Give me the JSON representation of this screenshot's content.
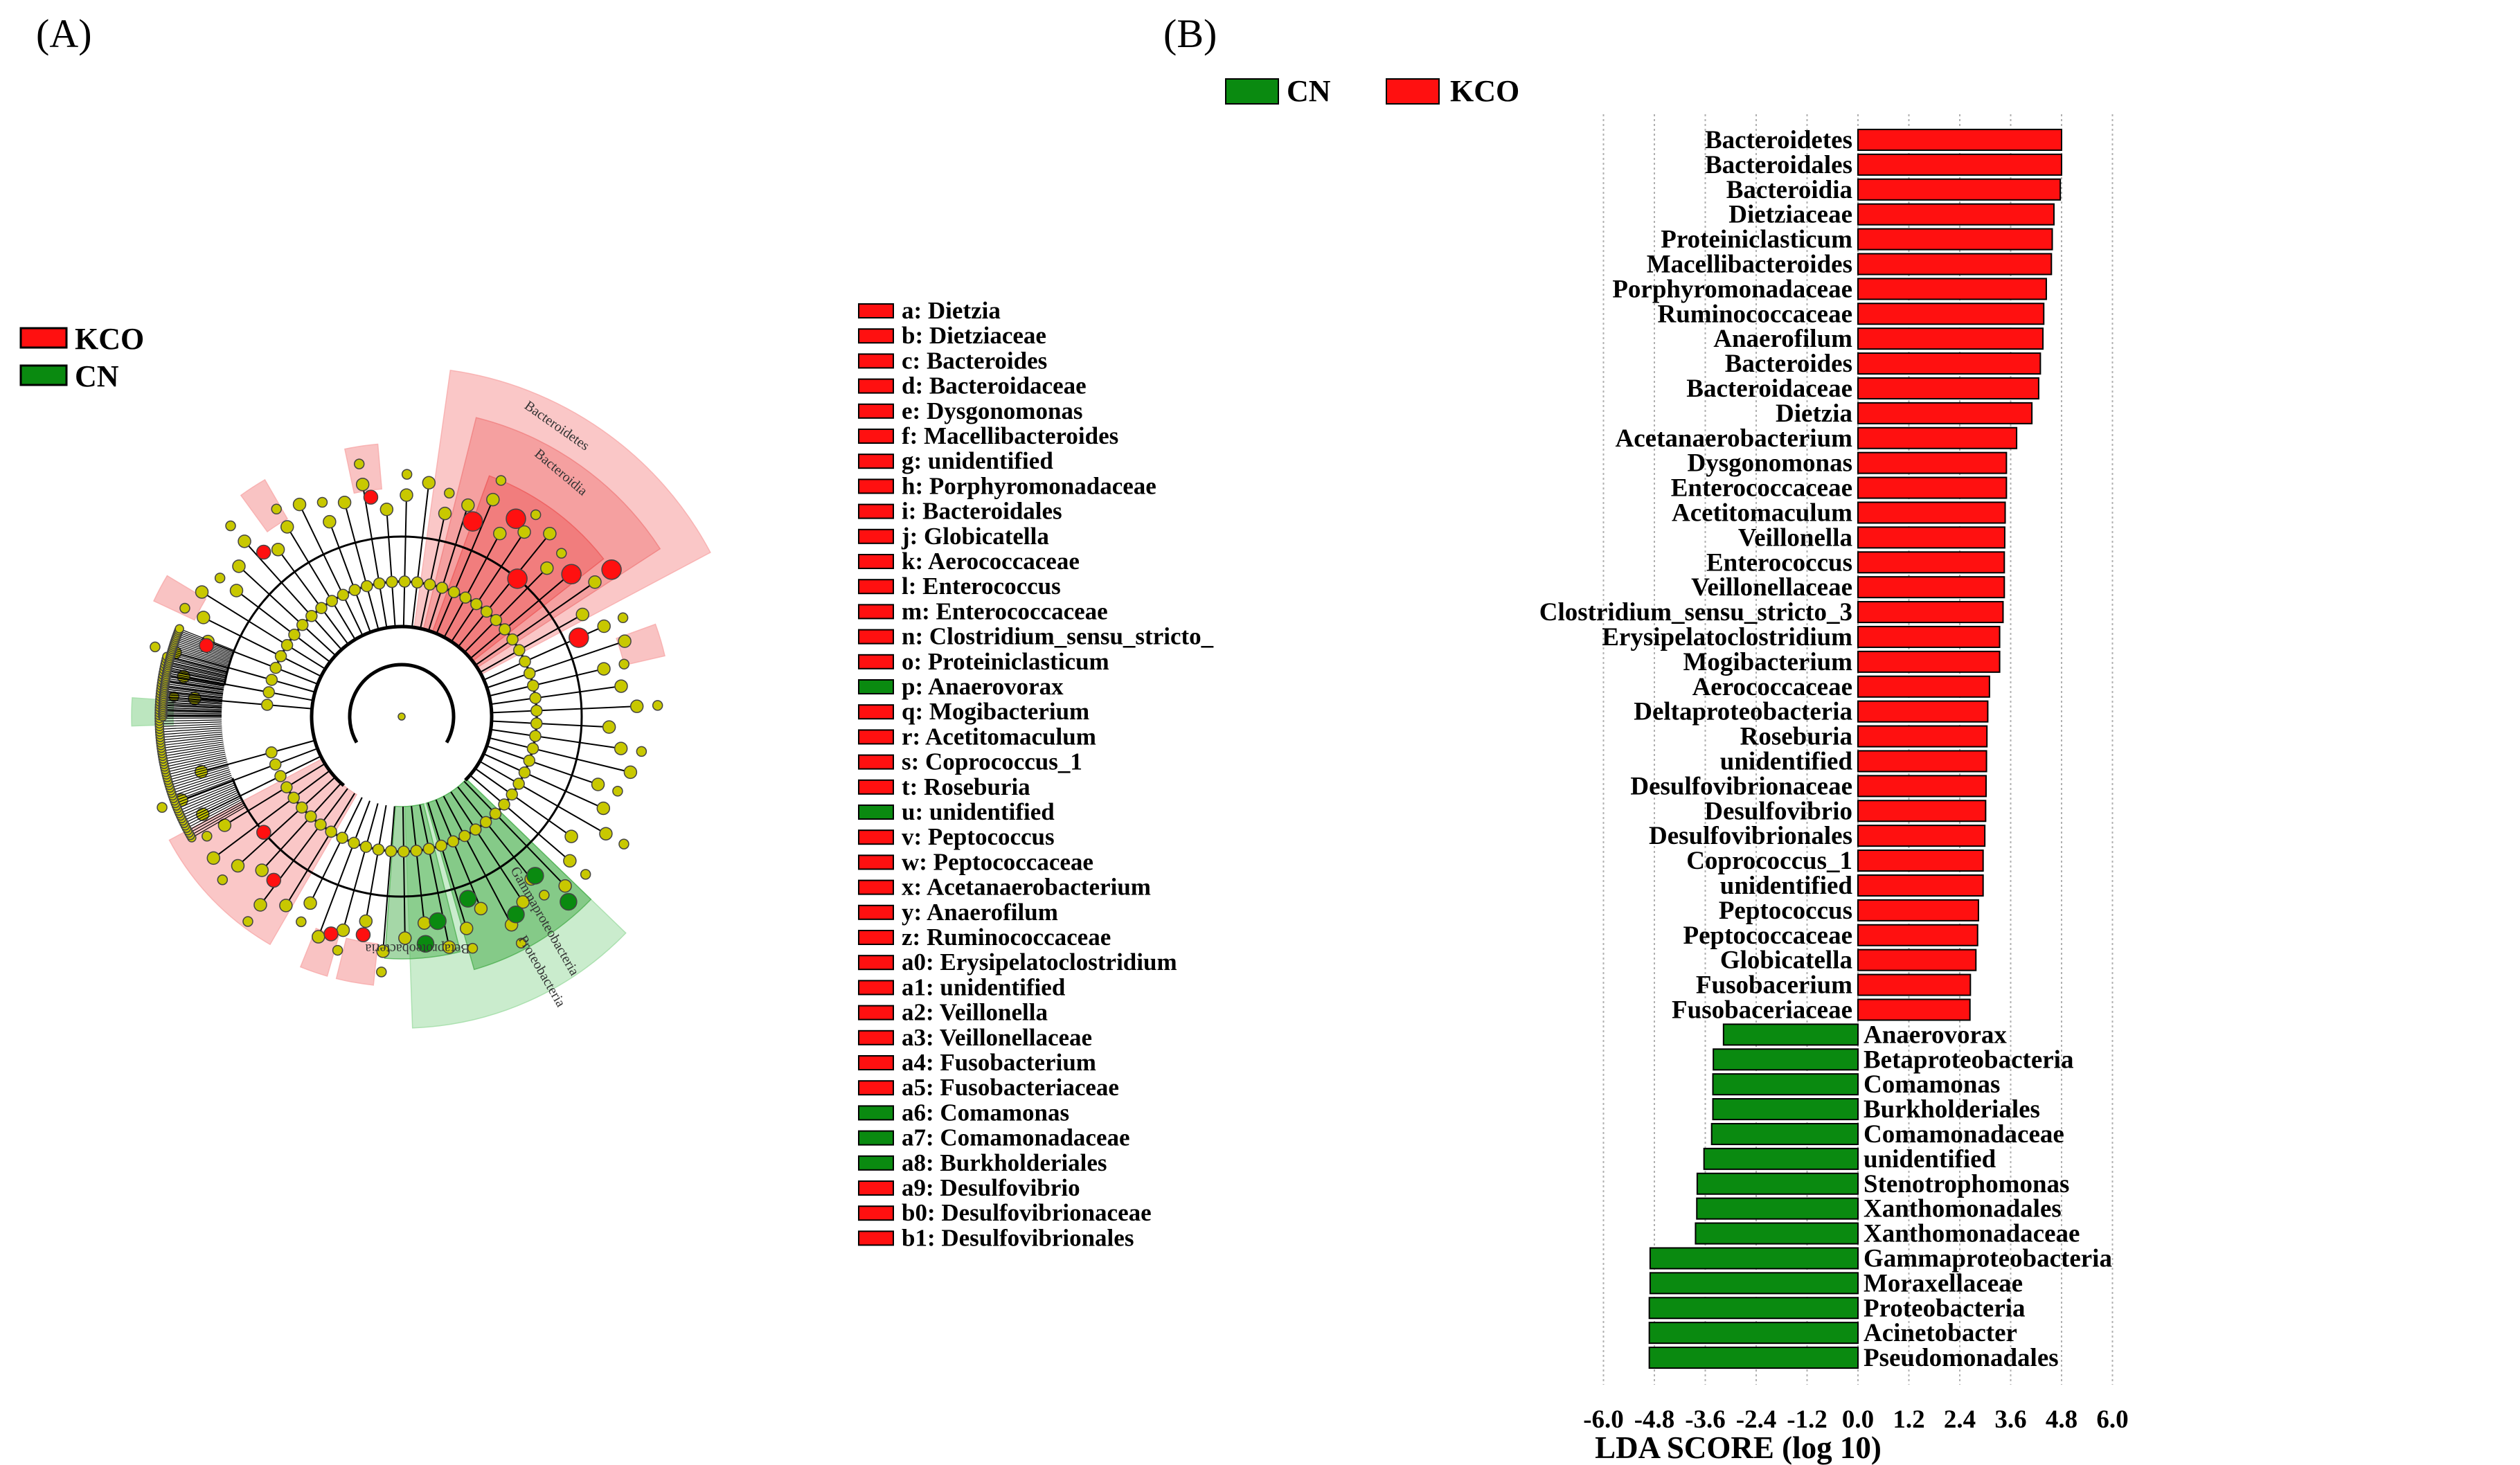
{
  "panels": {
    "a": "(A)",
    "b": "(B)"
  },
  "colors": {
    "KCO": "#ff1010",
    "CN": "#0a8a10",
    "node": "#c8c800",
    "shade_kco": "#f7a9a9",
    "shade_cn": "#7fcf84"
  },
  "cladogram_legend": [
    {
      "label": "KCO",
      "color": "#ff1010"
    },
    {
      "label": "CN",
      "color": "#0a8a10"
    }
  ],
  "clade_labels": [
    "Bacteroidetes",
    "Bacteroidia",
    "Gammaproteobacteria",
    "Proteobacteria",
    "Betaproteobacteria"
  ],
  "key_list": [
    {
      "text": "a: Dietzia",
      "group": "KCO"
    },
    {
      "text": "b: Dietziaceae",
      "group": "KCO"
    },
    {
      "text": "c: Bacteroides",
      "group": "KCO"
    },
    {
      "text": "d: Bacteroidaceae",
      "group": "KCO"
    },
    {
      "text": "e: Dysgonomonas",
      "group": "KCO"
    },
    {
      "text": "f: Macellibacteroides",
      "group": "KCO"
    },
    {
      "text": "g: unidentified",
      "group": "KCO"
    },
    {
      "text": "h: Porphyromonadaceae",
      "group": "KCO"
    },
    {
      "text": "i: Bacteroidales",
      "group": "KCO"
    },
    {
      "text": "j: Globicatella",
      "group": "KCO"
    },
    {
      "text": "k: Aerococcaceae",
      "group": "KCO"
    },
    {
      "text": "l: Enterococcus",
      "group": "KCO"
    },
    {
      "text": "m: Enterococcaceae",
      "group": "KCO"
    },
    {
      "text": "n: Clostridium_sensu_stricto_",
      "group": "KCO"
    },
    {
      "text": "o: Proteiniclasticum",
      "group": "KCO"
    },
    {
      "text": "p: Anaerovorax",
      "group": "CN"
    },
    {
      "text": "q: Mogibacterium",
      "group": "KCO"
    },
    {
      "text": "r: Acetitomaculum",
      "group": "KCO"
    },
    {
      "text": "s: Coprococcus_1",
      "group": "KCO"
    },
    {
      "text": "t: Roseburia",
      "group": "KCO"
    },
    {
      "text": "u: unidentified",
      "group": "CN"
    },
    {
      "text": "v: Peptococcus",
      "group": "KCO"
    },
    {
      "text": "w: Peptococcaceae",
      "group": "KCO"
    },
    {
      "text": "x: Acetanaerobacterium",
      "group": "KCO"
    },
    {
      "text": "y: Anaerofilum",
      "group": "KCO"
    },
    {
      "text": "z: Ruminococcaceae",
      "group": "KCO"
    },
    {
      "text": "a0: Erysipelatoclostridium",
      "group": "KCO"
    },
    {
      "text": "a1: unidentified",
      "group": "KCO"
    },
    {
      "text": "a2: Veillonella",
      "group": "KCO"
    },
    {
      "text": "a3: Veillonellaceae",
      "group": "KCO"
    },
    {
      "text": "a4: Fusobacterium",
      "group": "KCO"
    },
    {
      "text": "a5: Fusobacteriaceae",
      "group": "KCO"
    },
    {
      "text": "a6: Comamonas",
      "group": "CN"
    },
    {
      "text": "a7: Comamonadaceae",
      "group": "CN"
    },
    {
      "text": "a8: Burkholderiales",
      "group": "CN"
    },
    {
      "text": "a9: Desulfovibrio",
      "group": "KCO"
    },
    {
      "text": "b0: Desulfovibrionaceae",
      "group": "KCO"
    },
    {
      "text": "b1: Desulfovibrionales",
      "group": "KCO"
    }
  ],
  "chart_data": {
    "type": "bar",
    "orientation": "horizontal",
    "xlabel": "LDA SCORE (log 10)",
    "xlim": [
      -6.0,
      6.0
    ],
    "xticks": [
      "-6.0",
      "-4.8",
      "-3.6",
      "-2.4",
      "-1.2",
      "0.0",
      "1.2",
      "2.4",
      "3.6",
      "4.8",
      "6.0"
    ],
    "grid": true,
    "legend": [
      {
        "name": "CN",
        "color": "#0a8a10"
      },
      {
        "name": "KCO",
        "color": "#ff1010"
      }
    ],
    "series": [
      {
        "name": "KCO",
        "items": [
          {
            "label": "Bacteroidetes",
            "value": 4.8
          },
          {
            "label": "Bacteroidales",
            "value": 4.8
          },
          {
            "label": "Bacteroidia",
            "value": 4.77
          },
          {
            "label": "Dietziaceae",
            "value": 4.62
          },
          {
            "label": "Proteiniclasticum",
            "value": 4.58
          },
          {
            "label": "Macellibacteroides",
            "value": 4.56
          },
          {
            "label": "Porphyromonadaceae",
            "value": 4.44
          },
          {
            "label": "Ruminococcaceae",
            "value": 4.38
          },
          {
            "label": "Anaerofilum",
            "value": 4.36
          },
          {
            "label": "Bacteroides",
            "value": 4.3
          },
          {
            "label": "Bacteroidaceae",
            "value": 4.26
          },
          {
            "label": "Dietzia",
            "value": 4.1
          },
          {
            "label": "Acetanaerobacterium",
            "value": 3.74
          },
          {
            "label": "Dysgonomonas",
            "value": 3.5
          },
          {
            "label": "Enterococcaceae",
            "value": 3.5
          },
          {
            "label": "Acetitomaculum",
            "value": 3.47
          },
          {
            "label": "Veillonella",
            "value": 3.46
          },
          {
            "label": "Enterococcus",
            "value": 3.45
          },
          {
            "label": "Veillonellaceae",
            "value": 3.45
          },
          {
            "label": "Clostridium_sensu_stricto_3",
            "value": 3.42
          },
          {
            "label": "Erysipelatoclostridium",
            "value": 3.34
          },
          {
            "label": "Mogibacterium",
            "value": 3.34
          },
          {
            "label": "Aerococcaceae",
            "value": 3.1
          },
          {
            "label": "Deltaproteobacteria",
            "value": 3.06
          },
          {
            "label": "Roseburia",
            "value": 3.04
          },
          {
            "label": "unidentified",
            "value": 3.03
          },
          {
            "label": "Desulfovibrionaceae",
            "value": 3.02
          },
          {
            "label": "Desulfovibrio",
            "value": 3.01
          },
          {
            "label": "Desulfovibrionales",
            "value": 2.99
          },
          {
            "label": "Coprococcus_1",
            "value": 2.95
          },
          {
            "label": "unidentified",
            "value": 2.95
          },
          {
            "label": "Peptococcus",
            "value": 2.84
          },
          {
            "label": "Peptococcaceae",
            "value": 2.82
          },
          {
            "label": "Globicatella",
            "value": 2.78
          },
          {
            "label": "Fusobacerium",
            "value": 2.65
          },
          {
            "label": "Fusobaceriaceae",
            "value": 2.64
          }
        ]
      },
      {
        "name": "CN",
        "items": [
          {
            "label": "Anaerovorax",
            "value": -3.17
          },
          {
            "label": "Betaproteobacteria",
            "value": -3.41
          },
          {
            "label": "Comamonas",
            "value": -3.42
          },
          {
            "label": "Burkholderiales",
            "value": -3.42
          },
          {
            "label": "Comamonadaceae",
            "value": -3.45
          },
          {
            "label": "unidentified",
            "value": -3.63
          },
          {
            "label": "Stenotrophomonas",
            "value": -3.79
          },
          {
            "label": "Xanthomonadales",
            "value": -3.8
          },
          {
            "label": "Xanthomonadaceae",
            "value": -3.83
          },
          {
            "label": "Gammaproteobacteria",
            "value": -4.9
          },
          {
            "label": "Moraxellaceae",
            "value": -4.9
          },
          {
            "label": "Proteobacteria",
            "value": -4.92
          },
          {
            "label": "Acinetobacter",
            "value": -4.92
          },
          {
            "label": "Pseudomonadales",
            "value": -4.92
          }
        ]
      }
    ]
  }
}
